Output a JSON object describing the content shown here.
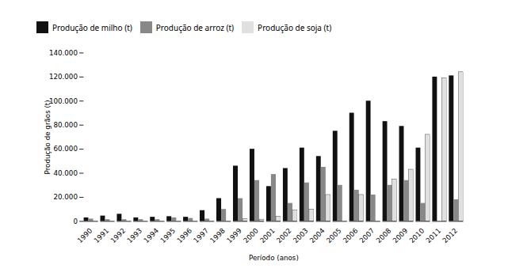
{
  "chart_data": {
    "type": "bar",
    "xlabel": "Período (anos)",
    "ylabel": "Produção de grãos (t)",
    "categories": [
      "1990",
      "1991",
      "1992",
      "1993",
      "1994",
      "1995",
      "1996",
      "1997",
      "1998",
      "1999",
      "2000",
      "2001",
      "2002",
      "2003",
      "2004",
      "2005",
      "2006",
      "2007",
      "2008",
      "2009",
      "2010",
      "2011",
      "2012"
    ],
    "series": [
      {
        "name": "Produção de milho (t)",
        "color": "#111111",
        "values": [
          3000,
          4500,
          6000,
          3000,
          3500,
          4000,
          3500,
          9000,
          19000,
          46000,
          60000,
          29000,
          44000,
          61000,
          54000,
          75000,
          90000,
          100000,
          83000,
          79000,
          61000,
          120000,
          121000
        ]
      },
      {
        "name": "Produção de arroz (t)",
        "color": "#888888",
        "values": [
          2000,
          1500,
          1500,
          1500,
          1500,
          3000,
          2500,
          2000,
          10000,
          19000,
          34000,
          39000,
          15000,
          32000,
          45000,
          30000,
          26000,
          22000,
          30000,
          34000,
          15000,
          0,
          18000
        ]
      },
      {
        "name": "Produção de soja (t)",
        "color": "#e0e0e0",
        "values": [
          0,
          0,
          0,
          0,
          0,
          0,
          0,
          0,
          0,
          2000,
          1500,
          4000,
          9000,
          10000,
          22000,
          0,
          22000,
          0,
          35000,
          43000,
          72000,
          119000,
          124000
        ]
      }
    ],
    "ylim": [
      0,
      140000
    ],
    "yticks": [
      0,
      {
        "value": 20000,
        "label": "20.000"
      },
      {
        "value": 40000,
        "label": "40.000"
      },
      {
        "value": 60000,
        "label": "60.000"
      },
      {
        "value": 80000,
        "label": "80.000"
      },
      {
        "value": 100000,
        "label": "100.000"
      },
      {
        "value": 120000,
        "label": "120.000"
      },
      {
        "value": 140000,
        "label": "140.000"
      }
    ],
    "grid": false,
    "legend": "upper left"
  }
}
